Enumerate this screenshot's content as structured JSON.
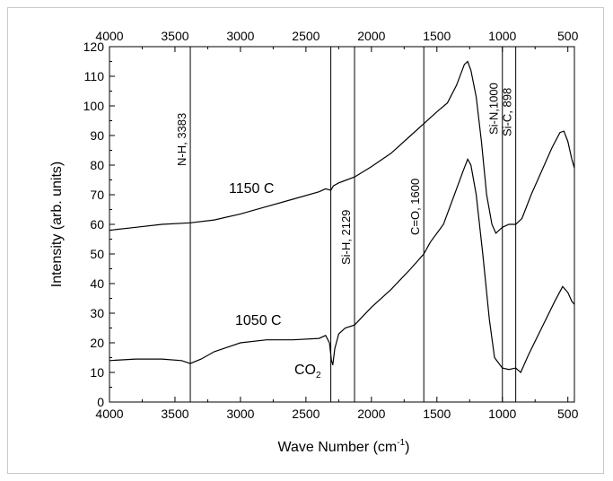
{
  "chart_data": {
    "type": "line",
    "title": "",
    "xlabel": "Wave Number (cm",
    "xlabel_sup": "-1",
    "xlabel_close": ")",
    "ylabel": "Intensity (arb. units)",
    "xlim": [
      4000,
      450
    ],
    "ylim": [
      0,
      120
    ],
    "x_reversed": true,
    "grid": false,
    "x_ticks": [
      "4000",
      "3500",
      "3000",
      "2500",
      "2000",
      "1500",
      "1000",
      "500"
    ],
    "x_tick_values": [
      4000,
      3500,
      3000,
      2500,
      2000,
      1500,
      1000,
      500
    ],
    "top_x_ticks": [
      "4000",
      "3500",
      "3000",
      "2500",
      "2000",
      "1500",
      "1000",
      "500"
    ],
    "y_ticks": [
      "0",
      "10",
      "20",
      "30",
      "40",
      "50",
      "60",
      "70",
      "80",
      "90",
      "100",
      "110",
      "120"
    ],
    "y_tick_values": [
      0,
      10,
      20,
      30,
      40,
      50,
      60,
      70,
      80,
      90,
      100,
      110,
      120
    ],
    "series": [
      {
        "name": "1150 C",
        "points": [
          [
            4000,
            58
          ],
          [
            3800,
            59
          ],
          [
            3600,
            60
          ],
          [
            3383,
            60.5
          ],
          [
            3200,
            61.5
          ],
          [
            3000,
            63.5
          ],
          [
            2800,
            66
          ],
          [
            2600,
            68.5
          ],
          [
            2400,
            71
          ],
          [
            2350,
            72
          ],
          [
            2310,
            71.5
          ],
          [
            2290,
            73
          ],
          [
            2250,
            74
          ],
          [
            2129,
            76
          ],
          [
            2000,
            79.5
          ],
          [
            1850,
            84
          ],
          [
            1700,
            90
          ],
          [
            1600,
            94
          ],
          [
            1500,
            98
          ],
          [
            1420,
            101
          ],
          [
            1350,
            107
          ],
          [
            1290,
            114
          ],
          [
            1265,
            115
          ],
          [
            1240,
            112
          ],
          [
            1200,
            103
          ],
          [
            1160,
            88
          ],
          [
            1120,
            70
          ],
          [
            1080,
            60
          ],
          [
            1050,
            57
          ],
          [
            1000,
            59
          ],
          [
            950,
            60
          ],
          [
            898,
            60
          ],
          [
            850,
            62
          ],
          [
            780,
            70
          ],
          [
            700,
            78
          ],
          [
            620,
            86
          ],
          [
            560,
            91
          ],
          [
            530,
            91.5
          ],
          [
            500,
            88
          ],
          [
            470,
            82
          ],
          [
            450,
            79
          ]
        ]
      },
      {
        "name": "1050 C",
        "points": [
          [
            4000,
            14
          ],
          [
            3800,
            14.5
          ],
          [
            3600,
            14.5
          ],
          [
            3450,
            14
          ],
          [
            3383,
            13
          ],
          [
            3300,
            14.5
          ],
          [
            3200,
            17
          ],
          [
            3000,
            20
          ],
          [
            2800,
            21
          ],
          [
            2600,
            21
          ],
          [
            2400,
            21.5
          ],
          [
            2350,
            22.5
          ],
          [
            2320,
            20
          ],
          [
            2305,
            14
          ],
          [
            2295,
            12.5
          ],
          [
            2280,
            18
          ],
          [
            2250,
            23
          ],
          [
            2200,
            25
          ],
          [
            2129,
            26
          ],
          [
            2000,
            32
          ],
          [
            1850,
            38
          ],
          [
            1700,
            45
          ],
          [
            1600,
            50
          ],
          [
            1550,
            54
          ],
          [
            1450,
            60
          ],
          [
            1350,
            72
          ],
          [
            1300,
            78
          ],
          [
            1265,
            82
          ],
          [
            1240,
            80
          ],
          [
            1200,
            70
          ],
          [
            1150,
            50
          ],
          [
            1100,
            28
          ],
          [
            1060,
            15
          ],
          [
            1000,
            11.5
          ],
          [
            950,
            11
          ],
          [
            898,
            11.5
          ],
          [
            860,
            10
          ],
          [
            800,
            16
          ],
          [
            700,
            25
          ],
          [
            600,
            34
          ],
          [
            540,
            39
          ],
          [
            500,
            37
          ],
          [
            470,
            34
          ],
          [
            450,
            33
          ]
        ]
      }
    ],
    "series_labels": [
      "1150 C",
      "1050 C"
    ],
    "annotations": {
      "vlines": [
        {
          "label": "N-H, 3383",
          "x": 3383
        },
        {
          "label": "Si-H, 2129",
          "x": 2129
        },
        {
          "label": "C=O, 1600",
          "x": 1600
        },
        {
          "label": "Si-N,1000",
          "x": 1000
        },
        {
          "label": "Si-C, 898",
          "x": 898
        }
      ],
      "extra_vline_x": 2310,
      "co2": {
        "main": "CO",
        "sub": "2",
        "x": 2320,
        "y": 10
      }
    },
    "colors": {
      "line": "#000000",
      "axis": "#000000",
      "frame": "#c8c8c8"
    }
  }
}
